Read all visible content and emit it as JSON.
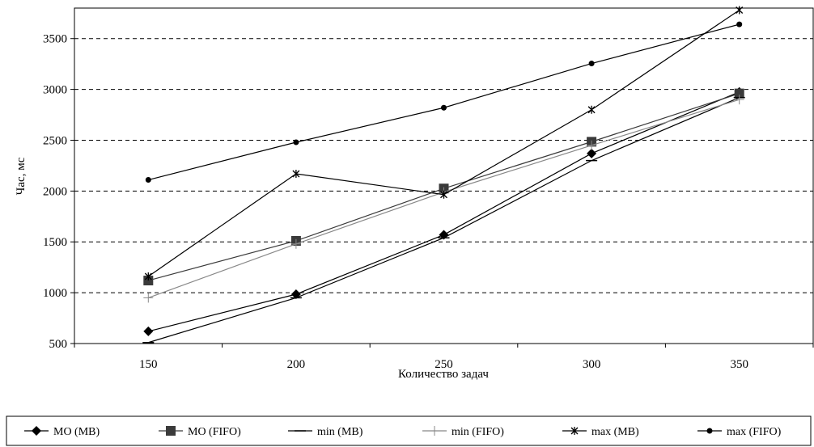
{
  "chart_data": {
    "type": "line",
    "xlabel": "Количество задач",
    "ylabel": "Час, мс",
    "x": [
      150,
      200,
      250,
      300,
      350
    ],
    "xlim": [
      125,
      375
    ],
    "ylim": [
      500,
      3800
    ],
    "yticks": [
      500,
      1000,
      1500,
      2000,
      2500,
      3000,
      3500
    ],
    "grid": "horizontal dashed",
    "legend_position": "bottom",
    "series": [
      {
        "name": "МО (МВ)",
        "marker": "diamond",
        "color": "#000000",
        "values": [
          620,
          985,
          1570,
          2370,
          2975
        ]
      },
      {
        "name": "МО (FIFO)",
        "marker": "square",
        "color": "#3a3a3a",
        "values": [
          1120,
          1510,
          2025,
          2485,
          2960
        ]
      },
      {
        "name": "min (МВ)",
        "marker": "dash",
        "color": "#000000",
        "values": [
          510,
          950,
          1540,
          2300,
          2920
        ]
      },
      {
        "name": "min (FIFO)",
        "marker": "plus",
        "color": "#888888",
        "values": [
          950,
          1480,
          1990,
          2450,
          2900
        ]
      },
      {
        "name": "max (МВ)",
        "marker": "star",
        "color": "#000000",
        "values": [
          1160,
          2170,
          1965,
          2800,
          3780
        ]
      },
      {
        "name": "max (FIFO)",
        "marker": "dot",
        "color": "#000000",
        "values": [
          2110,
          2480,
          2820,
          3255,
          3640
        ]
      }
    ]
  }
}
